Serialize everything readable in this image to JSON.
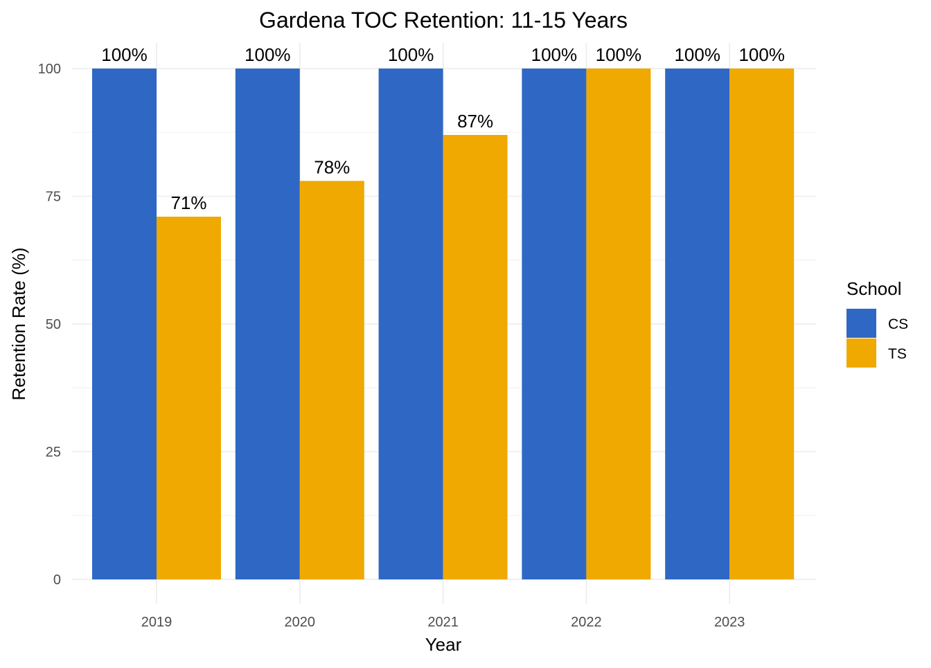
{
  "chart_data": {
    "type": "bar",
    "title": "Gardena TOC Retention: 11-15 Years",
    "xlabel": "Year",
    "ylabel": "Retention Rate (%)",
    "categories": [
      "2019",
      "2020",
      "2021",
      "2022",
      "2023"
    ],
    "series": [
      {
        "name": "CS",
        "color": "#2E68C4",
        "values": [
          100,
          100,
          100,
          100,
          100
        ],
        "labels": [
          "100%",
          "100%",
          "100%",
          "100%",
          "100%"
        ]
      },
      {
        "name": "TS",
        "color": "#F0A900",
        "values": [
          71,
          78,
          87,
          100,
          100
        ],
        "labels": [
          "71%",
          "78%",
          "87%",
          "100%",
          "100%"
        ]
      }
    ],
    "ylim": [
      0,
      100
    ],
    "yticks": [
      "0",
      "25",
      "50",
      "75",
      "100"
    ],
    "grid": true,
    "legend": {
      "title": "School",
      "position": "right"
    }
  }
}
